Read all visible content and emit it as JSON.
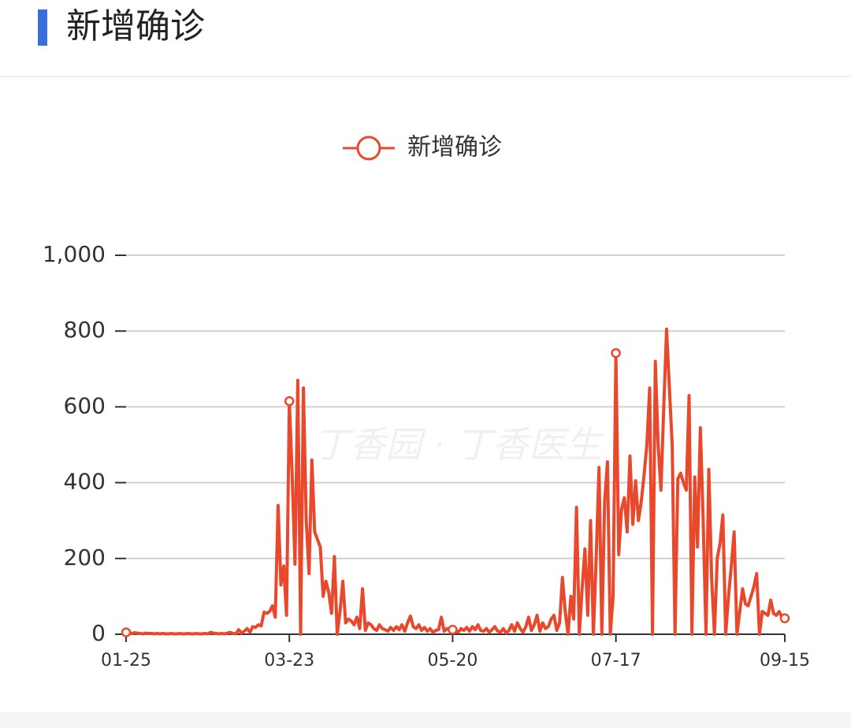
{
  "header": {
    "title": "新增确诊"
  },
  "chart_data": {
    "type": "line",
    "watermark": "丁香园 · 丁香医生",
    "categories": [
      "01-25",
      null,
      null,
      null,
      null,
      null,
      null,
      null,
      null,
      null,
      null,
      null,
      null,
      null,
      null,
      null,
      null,
      null,
      null,
      null,
      null,
      null,
      null,
      null,
      null,
      null,
      null,
      null,
      null,
      null,
      null,
      null,
      null,
      null,
      null,
      null,
      null,
      null,
      null,
      null,
      null,
      null,
      null,
      null,
      null,
      null,
      null,
      null,
      null,
      null,
      null,
      null,
      null,
      null,
      null,
      null,
      null,
      null,
      "03-23",
      null,
      null,
      null,
      null,
      null,
      null,
      null,
      null,
      null,
      null,
      null,
      null,
      null,
      null,
      null,
      null,
      null,
      null,
      null,
      null,
      null,
      null,
      null,
      null,
      null,
      null,
      null,
      null,
      null,
      null,
      null,
      null,
      null,
      null,
      null,
      null,
      null,
      null,
      null,
      null,
      null,
      null,
      null,
      null,
      null,
      null,
      null,
      null,
      null,
      null,
      null,
      null,
      null,
      null,
      null,
      null,
      null,
      "05-20",
      null,
      null,
      null,
      null,
      null,
      null,
      null,
      null,
      null,
      null,
      null,
      null,
      null,
      null,
      null,
      null,
      null,
      null,
      null,
      null,
      null,
      null,
      null,
      null,
      null,
      null,
      null,
      null,
      null,
      null,
      null,
      null,
      null,
      null,
      null,
      null,
      null,
      null,
      null,
      null,
      null,
      null,
      null,
      null,
      null,
      null,
      null,
      null,
      null,
      null,
      null,
      null,
      null,
      null,
      null,
      null,
      null,
      "07-17",
      null,
      null,
      null,
      null,
      null,
      null,
      null,
      null,
      null,
      null,
      null,
      null,
      null,
      null,
      null,
      null,
      null,
      null,
      null,
      null,
      null,
      null,
      null,
      null,
      null,
      null,
      null,
      null,
      null,
      null,
      null,
      null,
      null,
      null,
      null,
      null,
      null,
      null,
      null,
      null,
      null,
      null,
      null,
      null,
      null,
      null,
      null,
      null,
      null,
      null,
      null,
      null,
      null,
      null,
      null,
      null,
      null,
      null,
      null,
      "09-15"
    ],
    "series": [
      {
        "name": "新增确诊",
        "color": "#e8492c",
        "values": [
          5,
          3,
          2,
          4,
          3,
          2,
          1,
          3,
          2,
          2,
          1,
          2,
          1,
          2,
          1,
          1,
          2,
          1,
          1,
          2,
          1,
          1,
          2,
          1,
          1,
          2,
          1,
          1,
          2,
          1,
          5,
          3,
          2,
          1,
          2,
          1,
          3,
          5,
          2,
          1,
          12,
          3,
          8,
          15,
          5,
          20,
          18,
          25,
          22,
          58,
          55,
          60,
          75,
          45,
          340,
          130,
          180,
          50,
          615,
          420,
          185,
          670,
          0,
          650,
          300,
          160,
          460,
          270,
          250,
          230,
          100,
          140,
          110,
          55,
          205,
          0,
          60,
          140,
          30,
          40,
          35,
          25,
          45,
          15,
          120,
          10,
          30,
          25,
          15,
          10,
          25,
          15,
          12,
          8,
          18,
          10,
          20,
          12,
          25,
          8,
          30,
          48,
          20,
          15,
          25,
          10,
          18,
          8,
          15,
          5,
          10,
          12,
          45,
          8,
          15,
          10,
          12,
          8,
          5,
          15,
          10,
          18,
          8,
          20,
          12,
          25,
          10,
          8,
          15,
          5,
          12,
          20,
          8,
          5,
          15,
          3,
          10,
          25,
          8,
          30,
          15,
          5,
          20,
          45,
          10,
          25,
          50,
          8,
          30,
          15,
          20,
          40,
          50,
          10,
          30,
          150,
          60,
          0,
          100,
          40,
          335,
          0,
          120,
          225,
          50,
          300,
          0,
          200,
          440,
          0,
          350,
          455,
          0,
          100,
          742,
          210,
          330,
          360,
          270,
          470,
          290,
          405,
          300,
          350,
          420,
          500,
          650,
          0,
          720,
          500,
          380,
          600,
          805,
          650,
          500,
          0,
          410,
          425,
          400,
          380,
          630,
          0,
          415,
          230,
          545,
          300,
          0,
          435,
          150,
          0,
          200,
          240,
          315,
          0,
          100,
          180,
          270,
          0,
          60,
          120,
          80,
          75,
          100,
          125,
          160,
          0,
          60,
          55,
          50,
          90,
          55,
          50,
          60,
          45,
          42
        ]
      }
    ],
    "ylim": [
      0,
      1000
    ],
    "yticks": [
      0,
      200,
      400,
      600,
      800,
      {
        "value": 1000,
        "label": "1,000"
      }
    ],
    "grid": true,
    "legend": "top"
  }
}
